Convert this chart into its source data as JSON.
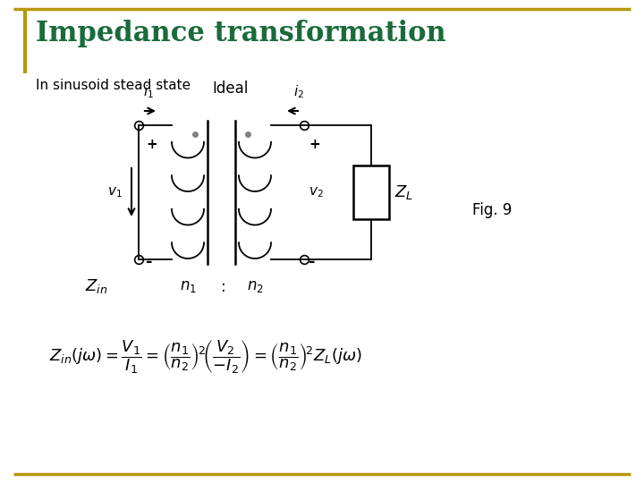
{
  "title": "Impedance transformation",
  "subtitle": "In sinusoid stead state",
  "fig_label": "Fig. 9",
  "title_color": "#1a6b3c",
  "title_fontsize": 22,
  "subtitle_fontsize": 11,
  "background_color": "#ffffff",
  "border_color": "#b8960c",
  "formula": "Z_{in}(j\\omega) = \\frac{V_1}{I_1} = \\left(\\frac{n_1}{n_2}\\right)^2 \\left(\\frac{V_2}{-I_2}\\right) = \\left(\\frac{n_1}{n_2}\\right)^2 Z_L(j\\omega)"
}
